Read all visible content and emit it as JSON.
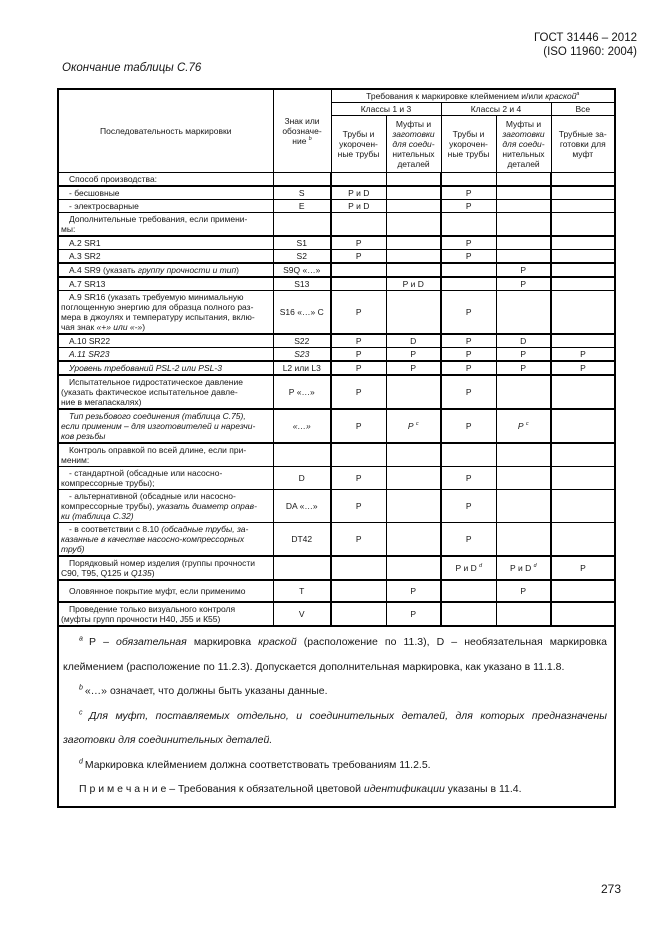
{
  "page": {
    "doc_ref_line1": "ГОСТ 31446 – 2012",
    "doc_ref_line2": "(ISO 11960: 2004)",
    "table_caption": "Окончание таблицы С.76",
    "page_number": "273"
  },
  "table": {
    "header": {
      "col1_lines": [
        [
          "Последовательность маркировки"
        ]
      ],
      "col2_lines": [
        [
          "Знак или"
        ],
        [
          "обозначе-"
        ],
        [
          {
            "t": "ние ",
            "sup": "b"
          }
        ]
      ],
      "span": [
        "Требования к маркировке клеймением и/или ",
        {
          "t": "краской",
          "i": true,
          "sup": "a"
        }
      ],
      "groups": [
        {
          "label": "Классы 1 и 3",
          "cols": 2
        },
        {
          "label": "Классы 2 и 4",
          "cols": 2
        },
        {
          "label": "Все",
          "cols": 1
        }
      ],
      "leaf": [
        [
          [
            "Трубы и"
          ],
          [
            "укорочен-"
          ],
          [
            "ные трубы"
          ]
        ],
        [
          [
            "Муфты и"
          ],
          [
            {
              "t": "заготовки",
              "i": true
            }
          ],
          [
            {
              "t": "для соеди-",
              "i": true
            }
          ],
          [
            "нительных"
          ],
          [
            "деталей"
          ]
        ],
        [
          [
            "Трубы и"
          ],
          [
            "укорочен-"
          ],
          [
            "ные трубы"
          ]
        ],
        [
          [
            "Муфты и"
          ],
          [
            {
              "t": "заготовки",
              "i": true
            }
          ],
          [
            {
              "t": "для соеди-",
              "i": true
            }
          ],
          [
            "нительных"
          ],
          [
            "деталей"
          ]
        ],
        [
          [
            "Трубные за-"
          ],
          [
            "готовки для"
          ],
          [
            "муфт"
          ]
        ]
      ]
    },
    "rows": [
      {
        "thick": false,
        "label": [
          [
            "Способ производства:"
          ]
        ],
        "sign": null,
        "cells": [
          null,
          null,
          null,
          null,
          null
        ]
      },
      {
        "thick": true,
        "label": [
          [
            "- бесшовные"
          ]
        ],
        "sign": [
          "S"
        ],
        "cells": [
          [
            "Р и D"
          ],
          null,
          [
            "Р"
          ],
          null,
          null
        ]
      },
      {
        "thick": false,
        "label": [
          [
            "- электросварные"
          ]
        ],
        "sign": [
          "E"
        ],
        "cells": [
          [
            "Р и D"
          ],
          null,
          [
            "Р"
          ],
          null,
          null
        ]
      },
      {
        "thick": false,
        "label": [
          [
            "Дополнительные требования, если примени-"
          ],
          [
            "мы:"
          ]
        ],
        "sign": null,
        "cells": [
          null,
          null,
          null,
          null,
          null
        ]
      },
      {
        "thick": true,
        "label": [
          [
            "А.2 SR1"
          ]
        ],
        "sign": [
          "S1"
        ],
        "cells": [
          [
            "Р"
          ],
          null,
          [
            "Р"
          ],
          null,
          null
        ]
      },
      {
        "thick": false,
        "label": [
          [
            "А.3 SR2"
          ]
        ],
        "sign": [
          "S2"
        ],
        "cells": [
          [
            "Р"
          ],
          null,
          [
            "Р"
          ],
          null,
          null
        ]
      },
      {
        "thick": true,
        "label": [
          [
            "А.4 SR9 (указать ",
            {
              "t": "группу прочности и тип",
              "i": true
            },
            ")"
          ]
        ],
        "sign": [
          "S9Q «…»"
        ],
        "cells": [
          null,
          null,
          null,
          [
            "Р"
          ],
          null
        ]
      },
      {
        "thick": true,
        "label": [
          [
            "А.7 SR13"
          ]
        ],
        "sign": [
          "S13"
        ],
        "cells": [
          null,
          [
            "Р и D"
          ],
          null,
          [
            "Р"
          ],
          null
        ]
      },
      {
        "thick": false,
        "label": [
          [
            "А.9 SR16 (указать требуемую минимальную"
          ],
          [
            "поглощенную энергию для образца полного раз-"
          ],
          [
            "мера в джоулях и температуру испытания, вклю-"
          ],
          [
            "чая знак ",
            {
              "t": "«+» или «-»",
              "i": true
            },
            ")"
          ]
        ],
        "sign": [
          "S16 «…» С"
        ],
        "cells": [
          [
            "Р"
          ],
          null,
          [
            "Р"
          ],
          null,
          null
        ]
      },
      {
        "thick": true,
        "label": [
          [
            "А.10 SR22"
          ]
        ],
        "sign": [
          "S22"
        ],
        "cells": [
          [
            "Р"
          ],
          [
            "D"
          ],
          [
            "Р"
          ],
          [
            "D"
          ],
          null
        ]
      },
      {
        "thick": false,
        "label": [
          [
            {
              "t": "А.11 SR23",
              "i": true
            }
          ]
        ],
        "sign": [
          {
            "t": "S23",
            "i": true
          }
        ],
        "cells": [
          [
            "Р"
          ],
          [
            "Р"
          ],
          [
            "Р"
          ],
          [
            "Р"
          ],
          [
            "Р"
          ]
        ]
      },
      {
        "thick": true,
        "label": [
          [
            {
              "t": "Уровень требований PSL-2 или PSL-3",
              "i": true
            }
          ]
        ],
        "sign": [
          "L2 или L3"
        ],
        "cells": [
          [
            "Р"
          ],
          [
            "Р"
          ],
          [
            "Р"
          ],
          [
            "Р"
          ],
          [
            "Р"
          ]
        ]
      },
      {
        "thick": true,
        "label": [
          [
            "Испытательное гидростатическое давление"
          ],
          [
            "(указать фактическое испытательное давле-"
          ],
          [
            "ние в мегапаскалях)"
          ]
        ],
        "sign": [
          "Р «…»"
        ],
        "cells": [
          [
            "Р"
          ],
          null,
          [
            "Р"
          ],
          null,
          null
        ]
      },
      {
        "thick": true,
        "label": [
          [
            {
              "t": "Тип резьбового соединения (таблица С.75),",
              "i": true
            }
          ],
          [
            {
              "t": "если применим – для изготовителей и нарезчи-",
              "i": true
            }
          ],
          [
            {
              "t": "ков резьбы",
              "i": true
            }
          ]
        ],
        "sign": [
          {
            "t": "«…»",
            "i": true
          }
        ],
        "cells": [
          [
            "Р"
          ],
          [
            {
              "t": "Р ",
              "i": true,
              "sup": "c"
            }
          ],
          [
            "Р"
          ],
          [
            {
              "t": "Р ",
              "i": true,
              "sup": "c"
            }
          ],
          null
        ]
      },
      {
        "thick": true,
        "label": [
          [
            "Контроль оправкой по всей длине, если при-"
          ],
          [
            "меним:"
          ]
        ],
        "sign": null,
        "cells": [
          null,
          null,
          null,
          null,
          null
        ]
      },
      {
        "thick": false,
        "label": [
          [
            "- стандартной (обсадные или насосно-"
          ],
          [
            "компрессорные трубы);"
          ]
        ],
        "sign": [
          "D"
        ],
        "cells": [
          [
            "Р"
          ],
          null,
          [
            "Р"
          ],
          null,
          null
        ]
      },
      {
        "thick": false,
        "label": [
          [
            "- альтернативной (обсадные или насосно-"
          ],
          [
            "компрессорные трубы), ",
            {
              "t": "указать диаметр оправ-",
              "i": true
            }
          ],
          [
            {
              "t": "ки (таблица С.32)",
              "i": true
            }
          ]
        ],
        "sign": [
          "DA «…»"
        ],
        "cells": [
          [
            "Р"
          ],
          null,
          [
            "Р"
          ],
          null,
          null
        ]
      },
      {
        "thick": false,
        "label": [
          [
            "- в соответствии с 8.10 ",
            {
              "t": "(обсадные трубы, за-",
              "i": true
            }
          ],
          [
            {
              "t": "казанные в качестве насосно-компрессорных",
              "i": true
            }
          ],
          [
            {
              "t": "труб)",
              "i": true
            }
          ]
        ],
        "sign": [
          "DT42"
        ],
        "cells": [
          [
            "Р"
          ],
          null,
          [
            "Р"
          ],
          null,
          null
        ]
      },
      {
        "thick": true,
        "label": [
          [
            "Порядковый номер изделия (группы прочности"
          ],
          [
            "С90, Т95, Q125 и ",
            {
              "t": "Q135",
              "i": true
            },
            ")"
          ]
        ],
        "sign": null,
        "cells": [
          null,
          null,
          [
            {
              "t": "Р и D ",
              "sup": "d"
            }
          ],
          [
            {
              "t": "Р и D ",
              "sup": "d"
            }
          ],
          [
            "Р"
          ]
        ]
      },
      {
        "thick": true,
        "tall": true,
        "label": [
          [
            "Оловянное покрытие муфт, если применимо"
          ]
        ],
        "sign": [
          "T"
        ],
        "cells": [
          null,
          [
            "Р"
          ],
          null,
          [
            "Р"
          ],
          null
        ]
      },
      {
        "thick": true,
        "label": [
          [
            "Проведение только визуального контроля"
          ],
          [
            "(муфты групп прочности Н40, J55 и К55)"
          ]
        ],
        "sign": [
          "V"
        ],
        "cells": [
          null,
          [
            "Р"
          ],
          null,
          null,
          null
        ]
      }
    ]
  },
  "footnotes": [
    {
      "marker": "a",
      "justify": true,
      "segments": [
        "Р – ",
        {
          "t": "обязательная",
          "i": true
        },
        " маркировка ",
        {
          "t": "краской",
          "i": true
        },
        " (расположение по 11.3), D – необязательная маркировка клеймением (расположение по 11.2.3). Допускается дополнительная маркировка, как указано в 11.1.8."
      ]
    },
    {
      "marker": "b",
      "justify": false,
      "segments": [
        "«…» означает, что должны быть указаны данные."
      ]
    },
    {
      "marker": "c",
      "justify": true,
      "segments": [
        {
          "t": "Для муфт, поставляемых отдельно, и соединительных деталей, для которых предназначены заготовки для соединительных деталей.",
          "i": true
        }
      ]
    },
    {
      "marker": "d",
      "justify": false,
      "segments": [
        "Маркировка клеймением должна соответствовать требованиям 11.2.5."
      ]
    },
    {
      "marker": null,
      "justify": false,
      "segments": [
        "П р и м е ч а н и е – Требования к обязательной цветовой ",
        {
          "t": "идентификации",
          "i": true
        },
        " указаны в 11.4."
      ]
    }
  ]
}
